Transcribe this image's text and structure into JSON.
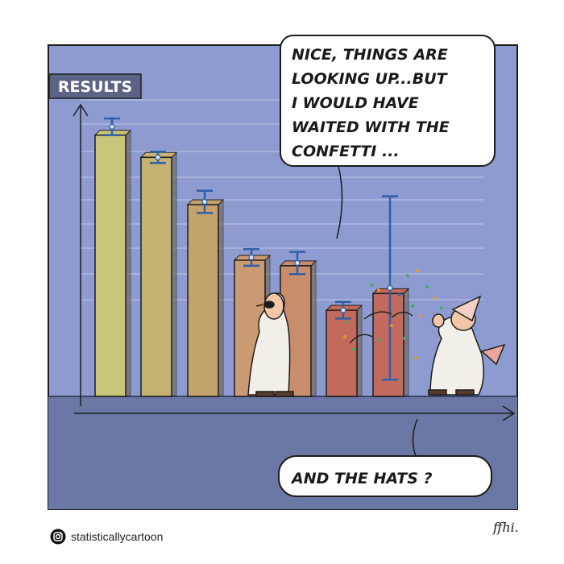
{
  "comic": {
    "axis_label": "RESULTS",
    "speech_top_lines": [
      "NICE, THINGS ARE",
      "LOOKING UP...BUT",
      "I WOULD HAVE",
      "WAITED WITH THE",
      "CONFETTI ..."
    ],
    "speech_bottom": "AND THE HATS ?",
    "signature": "ffhi."
  },
  "credit": {
    "handle": "statisticallycartoon",
    "icon": "instagram-icon"
  },
  "chart_data": {
    "type": "bar",
    "ylabel": "RESULTS",
    "values": [
      9.4,
      8.6,
      6.9,
      4.9,
      4.7,
      3.1,
      3.7
    ],
    "error_high": [
      10.0,
      8.8,
      7.4,
      5.3,
      5.2,
      3.4,
      7.2
    ],
    "error_low": [
      9.4,
      8.4,
      6.6,
      4.7,
      4.4,
      2.8,
      0.6
    ],
    "colors": [
      "#c8c57a",
      "#c4b372",
      "#c4a26c",
      "#cc9a72",
      "#c88e6c",
      "#c46a5c",
      "#c36a5e"
    ]
  }
}
